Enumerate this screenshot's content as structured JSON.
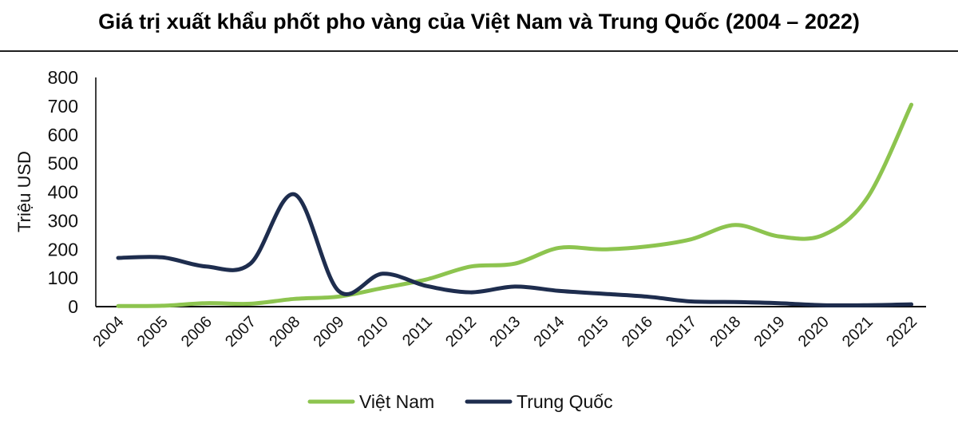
{
  "chart_data": {
    "type": "line",
    "title": "Giá trị xuất khẩu phốt pho vàng của Việt Nam và Trung Quốc (2004 – 2022)",
    "ylabel": "Triệu USD",
    "xlabel": "",
    "x": [
      "2004",
      "2005",
      "2006",
      "2007",
      "2008",
      "2009",
      "2010",
      "2011",
      "2012",
      "2013",
      "2014",
      "2015",
      "2016",
      "2017",
      "2018",
      "2019",
      "2020",
      "2021",
      "2022"
    ],
    "ylim": [
      0,
      800
    ],
    "yticks": [
      "0",
      "100",
      "200",
      "300",
      "400",
      "500",
      "600",
      "700",
      "800"
    ],
    "grid": false,
    "legend_position": "bottom-center",
    "series": [
      {
        "name": "Việt Nam",
        "color": "#8dc44f",
        "values": [
          2,
          3,
          12,
          10,
          27,
          35,
          65,
          95,
          140,
          150,
          205,
          200,
          210,
          235,
          285,
          245,
          250,
          380,
          705
        ]
      },
      {
        "name": "Trung Quốc",
        "color": "#1e2d4e",
        "values": [
          170,
          172,
          140,
          150,
          392,
          55,
          115,
          72,
          50,
          70,
          55,
          45,
          35,
          18,
          16,
          12,
          5,
          5,
          8
        ]
      }
    ]
  }
}
